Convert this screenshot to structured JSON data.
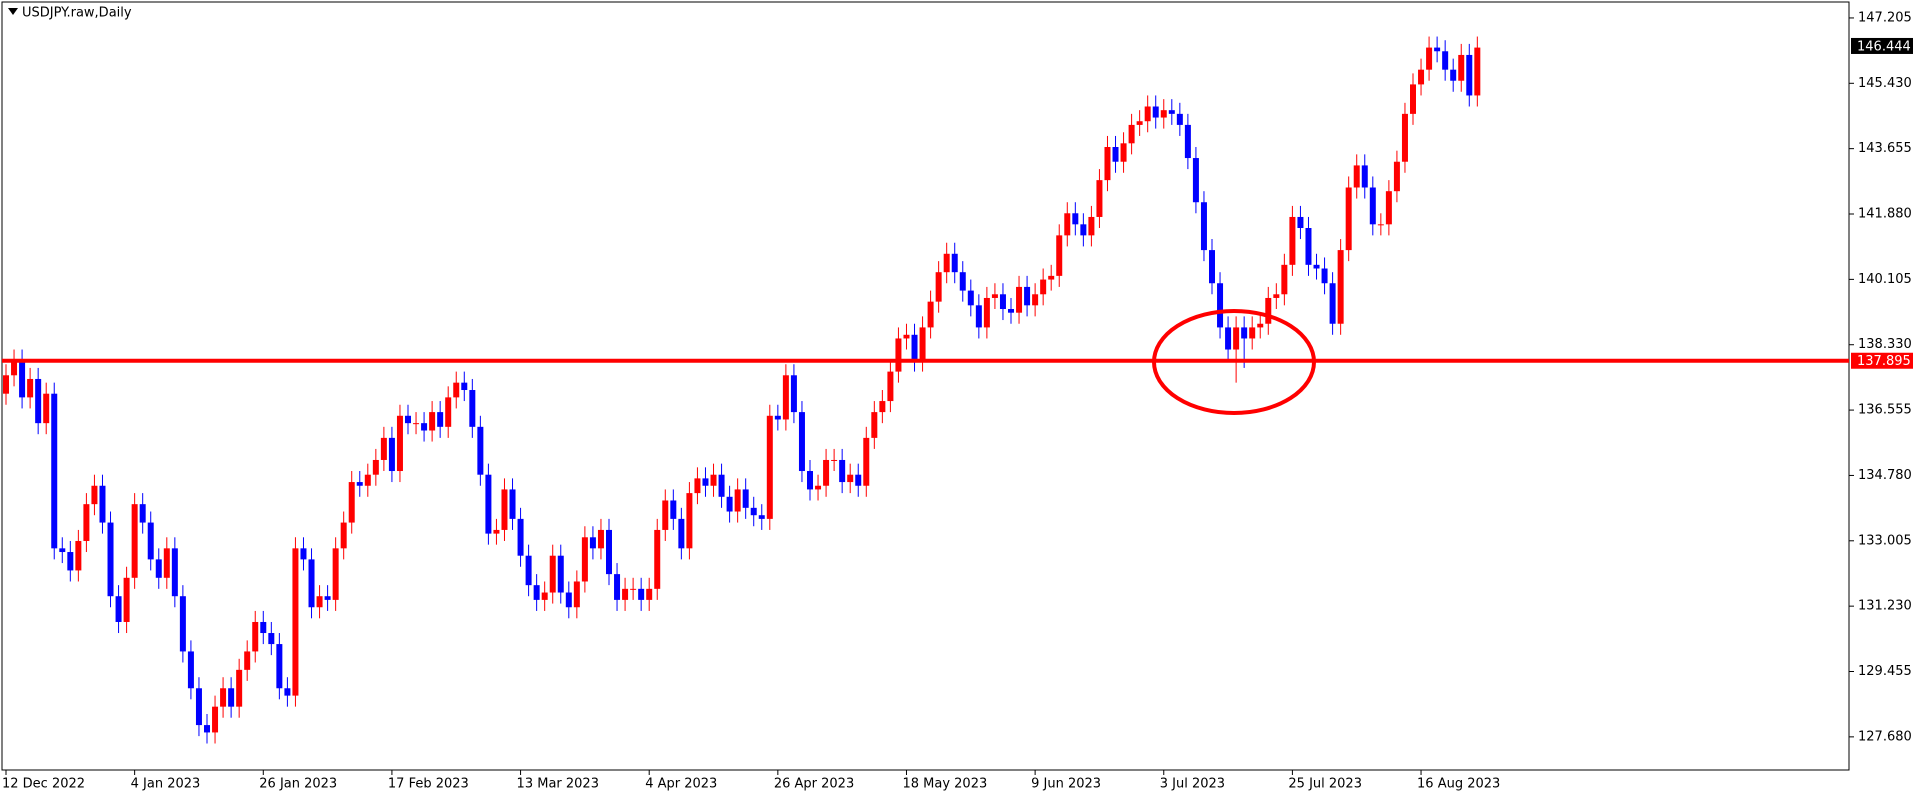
{
  "chart_data": {
    "type": "candlestick",
    "title": "USDJPY.raw,Daily",
    "categories": [
      "12 Dec 2022",
      null,
      null,
      null,
      null,
      null,
      null,
      null,
      null,
      null,
      null,
      null,
      null,
      null,
      null,
      null,
      "4 Jan 2023",
      null,
      null,
      null,
      null,
      null,
      null,
      null,
      null,
      null,
      null,
      null,
      null,
      null,
      null,
      null,
      "26 Jan 2023",
      null,
      null,
      null,
      null,
      null,
      null,
      null,
      null,
      null,
      null,
      null,
      null,
      null,
      null,
      null,
      "17 Feb 2023",
      null,
      null,
      null,
      null,
      null,
      null,
      null,
      null,
      null,
      null,
      null,
      null,
      null,
      null,
      null,
      "13 Mar 2023",
      null,
      null,
      null,
      null,
      null,
      null,
      null,
      null,
      null,
      null,
      null,
      null,
      null,
      null,
      null,
      "4 Apr 2023",
      null,
      null,
      null,
      null,
      null,
      null,
      null,
      null,
      null,
      null,
      null,
      null,
      null,
      null,
      null,
      "26 Apr 2023",
      null,
      null,
      null,
      null,
      null,
      null,
      null,
      null,
      null,
      null,
      null,
      null,
      null,
      null,
      null,
      "18 May 2023",
      null,
      null,
      null,
      null,
      null,
      null,
      null,
      null,
      null,
      null,
      null,
      null,
      null,
      null,
      null,
      "9 Jun 2023",
      null,
      null,
      null,
      null,
      null,
      null,
      null,
      null,
      null,
      null,
      null,
      null,
      null,
      null,
      null,
      "3 Jul 2023",
      null,
      null,
      null,
      null,
      null,
      null,
      null,
      null,
      null,
      null,
      null,
      null,
      null,
      null,
      null,
      "25 Jul 2023",
      null,
      null,
      null,
      null,
      null,
      null,
      null,
      null,
      null,
      null,
      null,
      null,
      null,
      null,
      null,
      "16 Aug 2023",
      null,
      null,
      null,
      null,
      null,
      null,
      null
    ],
    "open": [
      137.0,
      137.5,
      137.9,
      136.9,
      137.4,
      136.2,
      137.0,
      132.8,
      132.7,
      132.2,
      133.0,
      134.0,
      134.5,
      133.5,
      131.5,
      130.8,
      132.0,
      134.0,
      133.5,
      132.5,
      132.0,
      132.8,
      131.5,
      130.0,
      129.0,
      128.0,
      127.8,
      128.5,
      129.0,
      128.5,
      129.5,
      130.0,
      130.8,
      130.5,
      130.2,
      129.0,
      128.8,
      132.8,
      132.5,
      131.2,
      131.5,
      131.4,
      132.8,
      133.5,
      134.6,
      134.5,
      134.8,
      135.2,
      135.8,
      134.9,
      136.4,
      136.2,
      136.2,
      136.0,
      136.5,
      136.1,
      136.9,
      137.3,
      137.1,
      136.1,
      134.8,
      133.2,
      133.3,
      134.4,
      133.6,
      132.6,
      131.8,
      131.4,
      131.6,
      132.6,
      131.6,
      131.2,
      131.9,
      133.1,
      132.8,
      133.3,
      132.1,
      131.4,
      131.7,
      131.7,
      131.4,
      131.7,
      133.3,
      134.1,
      133.6,
      132.8,
      134.3,
      134.7,
      134.5,
      134.8,
      134.2,
      133.8,
      134.4,
      133.9,
      133.7,
      133.6,
      136.4,
      136.3,
      137.5,
      136.5,
      134.9,
      134.4,
      134.5,
      135.2,
      135.2,
      134.6,
      134.8,
      134.5,
      135.8,
      136.5,
      136.8,
      137.6,
      138.5,
      138.6,
      137.9,
      138.8,
      139.5,
      140.3,
      140.8,
      140.3,
      139.8,
      139.4,
      138.8,
      139.6,
      139.7,
      139.3,
      139.2,
      139.9,
      139.4,
      139.7,
      140.1,
      140.2,
      141.3,
      141.9,
      141.6,
      141.3,
      141.8,
      142.8,
      143.7,
      143.3,
      143.8,
      144.3,
      144.4,
      144.8,
      144.5,
      144.7,
      144.6,
      144.3,
      143.4,
      142.2,
      140.9,
      140.0,
      138.8,
      138.2,
      138.8,
      138.5,
      138.8,
      138.9,
      139.6,
      139.7,
      140.5,
      141.8,
      141.5,
      140.5,
      140.4,
      140.0,
      138.9,
      140.9,
      142.6,
      143.2,
      142.6,
      141.6,
      141.6,
      142.5,
      143.3,
      144.6,
      145.4,
      145.8,
      146.4,
      146.3,
      145.8,
      145.5,
      146.2,
      145.1
    ],
    "high": [
      137.8,
      138.2,
      138.2,
      137.7,
      137.7,
      137.3,
      137.3,
      133.1,
      133.0,
      133.3,
      134.3,
      134.8,
      134.8,
      133.8,
      131.8,
      132.3,
      134.3,
      134.3,
      133.8,
      132.8,
      133.1,
      133.1,
      131.8,
      130.3,
      129.3,
      128.3,
      128.8,
      129.3,
      129.3,
      129.8,
      130.3,
      131.1,
      131.1,
      130.8,
      130.5,
      129.3,
      133.1,
      133.1,
      132.8,
      131.8,
      131.8,
      133.1,
      133.8,
      134.9,
      134.9,
      135.1,
      135.5,
      136.1,
      136.1,
      136.7,
      136.7,
      136.5,
      136.5,
      136.8,
      136.8,
      137.2,
      137.6,
      137.6,
      137.4,
      136.4,
      135.1,
      133.6,
      134.7,
      134.7,
      133.9,
      132.9,
      132.1,
      131.9,
      132.9,
      132.9,
      131.9,
      132.2,
      133.4,
      133.4,
      133.6,
      133.6,
      132.4,
      132.0,
      132.0,
      132.0,
      132.0,
      133.6,
      134.4,
      134.4,
      133.9,
      134.6,
      135.0,
      135.0,
      135.1,
      135.1,
      134.5,
      134.7,
      134.7,
      134.2,
      134.0,
      136.7,
      136.7,
      137.8,
      137.8,
      136.8,
      135.2,
      134.8,
      135.5,
      135.5,
      135.5,
      135.1,
      135.1,
      136.1,
      136.8,
      137.1,
      137.9,
      138.8,
      138.9,
      138.9,
      139.1,
      139.8,
      140.6,
      141.1,
      141.1,
      140.6,
      140.1,
      139.7,
      139.9,
      140.0,
      140.0,
      139.6,
      140.2,
      140.2,
      140.0,
      140.4,
      140.5,
      141.6,
      142.2,
      142.2,
      141.9,
      142.1,
      143.1,
      144.0,
      144.0,
      144.1,
      144.6,
      144.7,
      145.1,
      145.1,
      145.0,
      145.0,
      144.9,
      144.6,
      143.7,
      142.5,
      141.2,
      140.3,
      139.1,
      139.1,
      139.1,
      139.1,
      139.2,
      139.9,
      140.0,
      140.8,
      142.1,
      142.1,
      141.8,
      140.8,
      140.7,
      140.3,
      141.2,
      142.9,
      143.5,
      143.5,
      142.9,
      141.9,
      142.8,
      143.6,
      144.9,
      145.7,
      146.1,
      146.7,
      146.7,
      146.6,
      146.1,
      146.5,
      146.5,
      146.7
    ],
    "low": [
      136.7,
      137.2,
      136.6,
      136.6,
      135.9,
      135.9,
      132.5,
      132.4,
      131.9,
      131.9,
      132.7,
      133.7,
      133.2,
      131.2,
      130.5,
      130.5,
      131.7,
      133.2,
      132.2,
      131.7,
      131.7,
      131.2,
      129.7,
      128.7,
      127.7,
      127.5,
      127.5,
      128.2,
      128.2,
      128.2,
      129.2,
      129.7,
      130.2,
      129.9,
      128.7,
      128.5,
      128.5,
      132.2,
      130.9,
      130.9,
      131.1,
      131.1,
      132.5,
      133.2,
      134.2,
      134.2,
      134.5,
      134.9,
      134.6,
      134.6,
      135.9,
      135.9,
      135.7,
      135.7,
      135.8,
      135.8,
      136.6,
      136.8,
      135.8,
      134.5,
      132.9,
      132.9,
      133.0,
      133.3,
      132.3,
      131.5,
      131.1,
      131.1,
      131.3,
      131.3,
      130.9,
      130.9,
      131.6,
      132.5,
      132.5,
      131.8,
      131.1,
      131.1,
      131.4,
      131.1,
      131.1,
      131.4,
      133.0,
      133.3,
      132.5,
      132.5,
      134.0,
      134.2,
      134.2,
      133.9,
      133.5,
      133.5,
      133.6,
      133.4,
      133.3,
      133.3,
      136.0,
      136.0,
      136.2,
      134.6,
      134.1,
      134.1,
      134.2,
      134.9,
      134.3,
      134.3,
      134.2,
      134.2,
      135.5,
      136.2,
      136.5,
      137.3,
      138.2,
      137.6,
      137.6,
      138.5,
      139.2,
      140.0,
      140.0,
      139.5,
      139.1,
      138.5,
      138.5,
      139.3,
      139.0,
      138.9,
      138.9,
      139.1,
      139.1,
      139.4,
      139.8,
      139.9,
      141.0,
      141.3,
      141.0,
      141.0,
      141.5,
      142.5,
      143.0,
      143.0,
      143.5,
      144.0,
      144.1,
      144.2,
      144.2,
      144.3,
      144.0,
      143.1,
      141.9,
      140.6,
      139.7,
      138.5,
      137.9,
      137.3,
      137.7,
      138.2,
      138.5,
      138.6,
      139.3,
      139.4,
      140.2,
      141.2,
      140.2,
      140.1,
      139.7,
      138.6,
      138.6,
      140.6,
      142.3,
      142.3,
      141.3,
      141.3,
      141.3,
      142.2,
      143.0,
      144.3,
      145.1,
      145.5,
      146.0,
      145.5,
      145.2,
      145.2,
      144.8,
      144.8
    ],
    "close": [
      137.5,
      137.9,
      136.9,
      137.4,
      136.2,
      137.0,
      132.8,
      132.7,
      132.2,
      133.0,
      134.0,
      134.5,
      133.5,
      131.5,
      130.8,
      132.0,
      134.0,
      133.5,
      132.5,
      132.0,
      132.8,
      131.5,
      130.0,
      129.0,
      128.0,
      127.8,
      128.5,
      129.0,
      128.5,
      129.5,
      130.0,
      130.8,
      130.5,
      130.2,
      129.0,
      128.8,
      132.8,
      132.5,
      131.2,
      131.5,
      131.4,
      132.8,
      133.5,
      134.6,
      134.5,
      134.8,
      135.2,
      135.8,
      134.9,
      136.4,
      136.2,
      136.2,
      136.0,
      136.5,
      136.1,
      136.9,
      137.3,
      137.1,
      136.1,
      134.8,
      133.2,
      133.3,
      134.4,
      133.6,
      132.6,
      131.8,
      131.4,
      131.6,
      132.6,
      131.6,
      131.2,
      131.9,
      133.1,
      132.8,
      133.3,
      132.1,
      131.4,
      131.7,
      131.7,
      131.4,
      131.7,
      133.3,
      134.1,
      133.6,
      132.8,
      134.3,
      134.7,
      134.5,
      134.8,
      134.2,
      133.8,
      134.4,
      133.9,
      133.7,
      133.6,
      136.4,
      136.3,
      137.5,
      136.5,
      134.9,
      134.4,
      134.5,
      135.2,
      135.2,
      134.6,
      134.8,
      134.5,
      135.8,
      136.5,
      136.8,
      137.6,
      138.5,
      138.6,
      137.9,
      138.8,
      139.5,
      140.3,
      140.8,
      140.3,
      139.8,
      139.4,
      138.8,
      139.6,
      139.7,
      139.3,
      139.2,
      139.9,
      139.4,
      139.7,
      140.1,
      140.2,
      141.3,
      141.9,
      141.6,
      141.3,
      141.8,
      142.8,
      143.7,
      143.3,
      143.8,
      144.3,
      144.4,
      144.8,
      144.5,
      144.7,
      144.6,
      144.3,
      143.4,
      142.2,
      140.9,
      140.0,
      138.8,
      138.2,
      138.8,
      138.5,
      138.8,
      138.9,
      139.6,
      139.7,
      140.5,
      141.8,
      141.5,
      140.5,
      140.4,
      140.0,
      138.9,
      140.9,
      142.6,
      143.2,
      142.6,
      141.6,
      141.6,
      142.5,
      143.3,
      144.6,
      145.4,
      145.8,
      146.4,
      146.3,
      145.8,
      145.5,
      146.2,
      145.1,
      146.4
    ],
    "up_color": "#ff0000",
    "down_color": "#0000ff",
    "ylim": [
      126.78,
      147.638
    ],
    "yticks": [
      {
        "value": 147.205,
        "label": "147.205"
      },
      {
        "value": 145.43,
        "label": "145.430"
      },
      {
        "value": 143.655,
        "label": "143.655"
      },
      {
        "value": 141.88,
        "label": "141.880"
      },
      {
        "value": 140.105,
        "label": "140.105"
      },
      {
        "value": 138.33,
        "label": "138.330"
      },
      {
        "value": 136.555,
        "label": "136.555"
      },
      {
        "value": 134.78,
        "label": "134.780"
      },
      {
        "value": 133.005,
        "label": "133.005"
      },
      {
        "value": 131.23,
        "label": "131.230"
      },
      {
        "value": 129.455,
        "label": "129.455"
      },
      {
        "value": 127.68,
        "label": "127.680"
      }
    ],
    "level": 137.895,
    "level_color": "#ff0000",
    "last_price": 146.444
  }
}
